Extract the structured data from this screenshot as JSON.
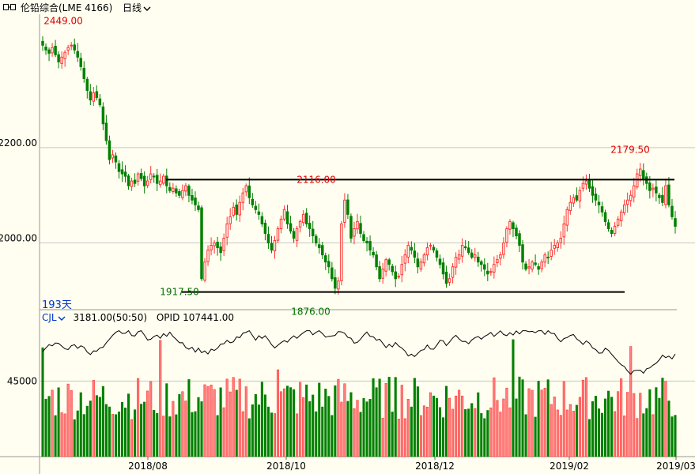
{
  "header": {
    "title": "伦铅综合(LME 4166)",
    "period": "日线",
    "dropdown_icon": "chevron-down-icon",
    "layout_icon": "window-layout-icon"
  },
  "days_label": "193天",
  "volume_panel": {
    "indicator": "CJL",
    "value_text": "3181.00(50:50)",
    "opid_text": "OPID 107441.00"
  },
  "colors": {
    "up": "#ff3333",
    "down": "#008000",
    "line": "#000000",
    "grid": "#c8c8c8",
    "label_up": "#e00000",
    "label_down": "#007000"
  },
  "chart_data": {
    "type": "candlestick",
    "y_ticks": [
      "2200.00",
      "2000.00"
    ],
    "vol_ticks": [
      "45000"
    ],
    "x_ticks": [
      "2018/08",
      "2018/10",
      "2018/12",
      "2019/02",
      "2019/03"
    ],
    "ylim": [
      1860,
      2480
    ],
    "annotations": [
      {
        "text": "2449.00",
        "value": 2449,
        "kind": "high"
      },
      {
        "text": "2116.00",
        "value": 2116,
        "kind": "high"
      },
      {
        "text": "2179.50",
        "value": 2179.5,
        "kind": "high"
      },
      {
        "text": "1917.50",
        "value": 1917.5,
        "kind": "low"
      },
      {
        "text": "1876.00",
        "value": 1876,
        "kind": "low"
      }
    ],
    "resistance": 2133,
    "support": 1897,
    "close": [
      2415,
      2405,
      2398,
      2410,
      2395,
      2380,
      2390,
      2400,
      2410,
      2415,
      2405,
      2390,
      2370,
      2345,
      2320,
      2300,
      2315,
      2305,
      2290,
      2250,
      2215,
      2175,
      2185,
      2170,
      2150,
      2145,
      2140,
      2120,
      2130,
      2125,
      2145,
      2135,
      2120,
      2130,
      2145,
      2140,
      2125,
      2130,
      2140,
      2120,
      2110,
      2115,
      2105,
      2100,
      2110,
      2120,
      2100,
      2090,
      2080,
      2070,
      1925,
      1960,
      1985,
      1995,
      2000,
      1990,
      1980,
      2010,
      2040,
      2055,
      2075,
      2060,
      2085,
      2105,
      2120,
      2095,
      2080,
      2070,
      2060,
      2040,
      2020,
      2000,
      1985,
      2005,
      2030,
      2050,
      2070,
      2040,
      2025,
      2010,
      2030,
      2045,
      2060,
      2040,
      2030,
      2015,
      2000,
      1990,
      1975,
      1960,
      1950,
      1925,
      1905,
      1920,
      2040,
      2090,
      2060,
      2010,
      2030,
      2045,
      2020,
      2005,
      2000,
      1985,
      1975,
      1950,
      1925,
      1945,
      1965,
      1955,
      1940,
      1925,
      1930,
      1955,
      1975,
      1995,
      1985,
      1970,
      1950,
      1960,
      1975,
      1990,
      1995,
      1985,
      1970,
      1955,
      1935,
      1915,
      1925,
      1950,
      1970,
      1975,
      1995,
      1990,
      1980,
      1970,
      1975,
      1960,
      1955,
      1945,
      1935,
      1940,
      1955,
      1965,
      1975,
      2000,
      2030,
      2045,
      2030,
      2015,
      1995,
      1960,
      1945,
      1950,
      1960,
      1955,
      1945,
      1960,
      1975,
      1970,
      1985,
      1995,
      2000,
      2010,
      2040,
      2070,
      2085,
      2095,
      2090,
      2110,
      2125,
      2130,
      2115,
      2100,
      2090,
      2080,
      2065,
      2045,
      2030,
      2020,
      2035,
      2050,
      2065,
      2080,
      2090,
      2100,
      2120,
      2145,
      2155,
      2135,
      2125,
      2110,
      2115,
      2105,
      2095,
      2085,
      2120,
      2080,
      2055,
      2035
    ]
  }
}
